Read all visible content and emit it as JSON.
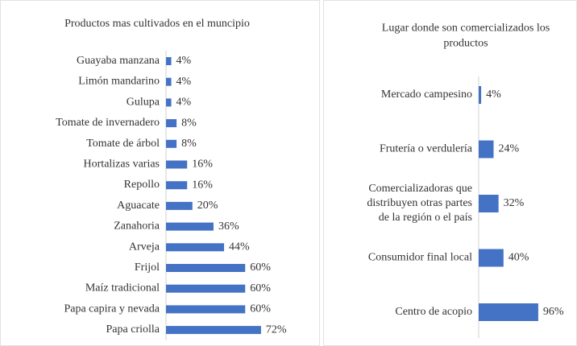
{
  "chart_data": [
    {
      "type": "bar",
      "orientation": "horizontal",
      "title": "Productos mas cultivados en el muncipio",
      "categories": [
        "Guayaba manzana",
        "Limón mandarino",
        "Gulupa",
        "Tomate de invernadero",
        "Tomate de árbol",
        "Hortalizas varias",
        "Repollo",
        "Aguacate",
        "Zanahoria",
        "Arveja",
        "Frijol",
        "Maíz tradicional",
        "Papa capira y nevada",
        "Papa criolla"
      ],
      "values": [
        4,
        4,
        4,
        8,
        8,
        16,
        16,
        20,
        36,
        44,
        60,
        60,
        60,
        72
      ],
      "value_labels": [
        "4%",
        "4%",
        "4%",
        "8%",
        "8%",
        "16%",
        "16%",
        "20%",
        "36%",
        "44%",
        "60%",
        "60%",
        "60%",
        "72%"
      ],
      "color": "#4472c4",
      "xlim": [
        0,
        80
      ]
    },
    {
      "type": "bar",
      "orientation": "horizontal",
      "title": "Lugar donde son comercializados los\nproductos",
      "categories": [
        "Mercado campesino",
        "Frutería o verdulería",
        "Comercializadoras que\ndistribuyen otras partes\nde la región o el país",
        "Consumidor final local",
        "Centro de acopio"
      ],
      "values": [
        4,
        24,
        32,
        40,
        96
      ],
      "value_labels": [
        "4%",
        "24%",
        "32%",
        "40%",
        "96%"
      ],
      "color": "#4472c4",
      "xlim": [
        0,
        100
      ]
    }
  ]
}
